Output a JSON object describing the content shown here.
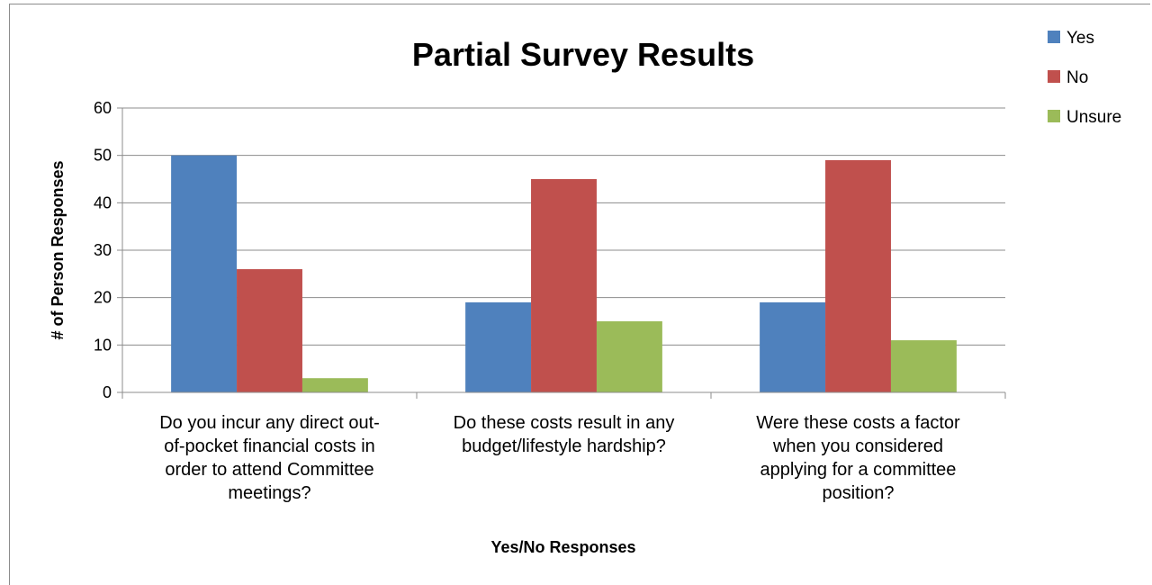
{
  "chart_data": {
    "type": "bar",
    "title": "Partial Survey Results",
    "xlabel": "Yes/No Responses",
    "ylabel": "# of Person Responses",
    "ylim": [
      0,
      60
    ],
    "yticks": [
      0,
      10,
      20,
      30,
      40,
      50,
      60
    ],
    "grid": true,
    "legend_position": "top-right",
    "categories": [
      [
        "Do you incur any direct out-",
        "of-pocket financial costs in",
        "order to attend Committee",
        "meetings?"
      ],
      [
        "Do these costs result in any",
        "budget/lifestyle hardship?"
      ],
      [
        "Were these costs a factor",
        "when you considered",
        "applying for a committee",
        "position?"
      ]
    ],
    "series": [
      {
        "name": "Yes",
        "color": "#4F81BD",
        "values": [
          50,
          19,
          19
        ]
      },
      {
        "name": "No",
        "color": "#C0504D",
        "values": [
          26,
          45,
          49
        ]
      },
      {
        "name": "Unsure",
        "color": "#9BBB59",
        "values": [
          3,
          15,
          11
        ]
      }
    ]
  }
}
